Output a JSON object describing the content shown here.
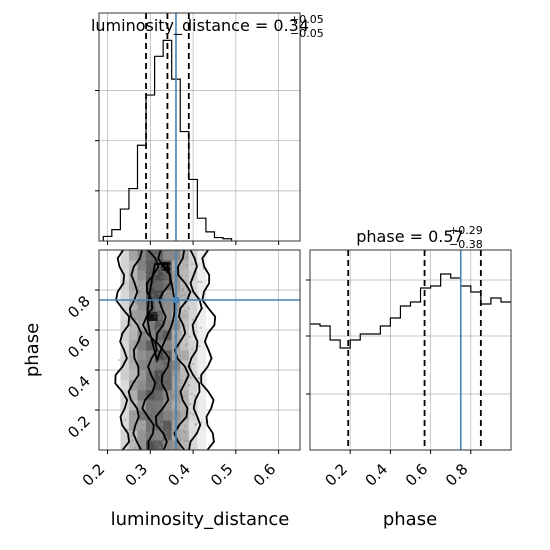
{
  "chart_data": [
    {
      "type": "histogram",
      "panel": "luminosity_distance marginal",
      "title_param": "luminosity_distance",
      "title_median": "0.34",
      "title_plus": "+0.05",
      "title_minus": "−0.05",
      "xlim": [
        0.18,
        0.65
      ],
      "bin_edges": [
        0.19,
        0.21,
        0.23,
        0.25,
        0.27,
        0.29,
        0.31,
        0.33,
        0.35,
        0.37,
        0.39,
        0.41,
        0.43,
        0.45,
        0.47,
        0.49
      ],
      "counts": [
        0.02,
        0.05,
        0.14,
        0.23,
        0.42,
        0.64,
        0.81,
        0.88,
        0.71,
        0.48,
        0.27,
        0.1,
        0.04,
        0.015,
        0.01
      ],
      "quantiles": [
        0.29,
        0.34,
        0.39
      ],
      "truth": 0.36,
      "grid": true
    },
    {
      "type": "histogram",
      "panel": "phase marginal",
      "title_param": "phase",
      "title_median": "0.57",
      "title_plus": "+0.29",
      "title_minus": "−0.38",
      "xlabel": "phase",
      "xlim": [
        0.0,
        1.0
      ],
      "xticks": [
        "0.2",
        "0.4",
        "0.6",
        "0.8"
      ],
      "bin_edges": [
        0.0,
        0.05,
        0.1,
        0.15,
        0.2,
        0.25,
        0.3,
        0.35,
        0.4,
        0.45,
        0.5,
        0.55,
        0.6,
        0.65,
        0.7,
        0.75,
        0.8,
        0.85,
        0.9,
        0.95,
        1.0
      ],
      "counts": [
        0.63,
        0.62,
        0.55,
        0.51,
        0.55,
        0.58,
        0.58,
        0.62,
        0.66,
        0.72,
        0.74,
        0.81,
        0.82,
        0.88,
        0.86,
        0.82,
        0.79,
        0.73,
        0.76,
        0.74
      ],
      "quantiles": [
        0.19,
        0.57,
        0.85
      ],
      "truth": 0.75,
      "grid": true
    },
    {
      "type": "2d-density",
      "panel": "luminosity_distance vs phase",
      "xlabel": "luminosity_distance",
      "ylabel": "phase",
      "xlim": [
        0.18,
        0.65
      ],
      "ylim": [
        0.0,
        1.0
      ],
      "xticks": [
        "0.2",
        "0.3",
        "0.4",
        "0.5",
        "0.6"
      ],
      "yticks": [
        "0.2",
        "0.4",
        "0.6",
        "0.8"
      ],
      "truth": [
        0.36,
        0.75
      ],
      "x_bin_edges": [
        0.23,
        0.25,
        0.27,
        0.29,
        0.31,
        0.33,
        0.35,
        0.37,
        0.39,
        0.41,
        0.43
      ],
      "y_bin_edges": [
        0.0,
        0.05,
        0.1,
        0.15,
        0.2,
        0.25,
        0.3,
        0.35,
        0.4,
        0.45,
        0.5,
        0.55,
        0.6,
        0.65,
        0.7,
        0.75,
        0.8,
        0.85,
        0.9,
        0.95,
        1.0
      ],
      "density_columns": [
        0.22,
        0.45,
        0.65,
        0.82,
        0.9,
        0.8,
        0.6,
        0.4,
        0.2,
        0.08
      ],
      "contour_columns": [
        {
          "x": 0.235,
          "half_width": 0.012
        },
        {
          "x": 0.265,
          "half_width": 0.01
        },
        {
          "x": 0.3,
          "half_width": 0.012
        },
        {
          "x": 0.33,
          "half_width": 0.012
        },
        {
          "x": 0.375,
          "half_width": 0.012
        },
        {
          "x": 0.405,
          "half_width": 0.01
        },
        {
          "x": 0.435,
          "half_width": 0.012
        }
      ],
      "hotspots": [
        [
          0.305,
          0.67
        ],
        [
          0.335,
          0.92
        ]
      ],
      "grid": true
    }
  ]
}
